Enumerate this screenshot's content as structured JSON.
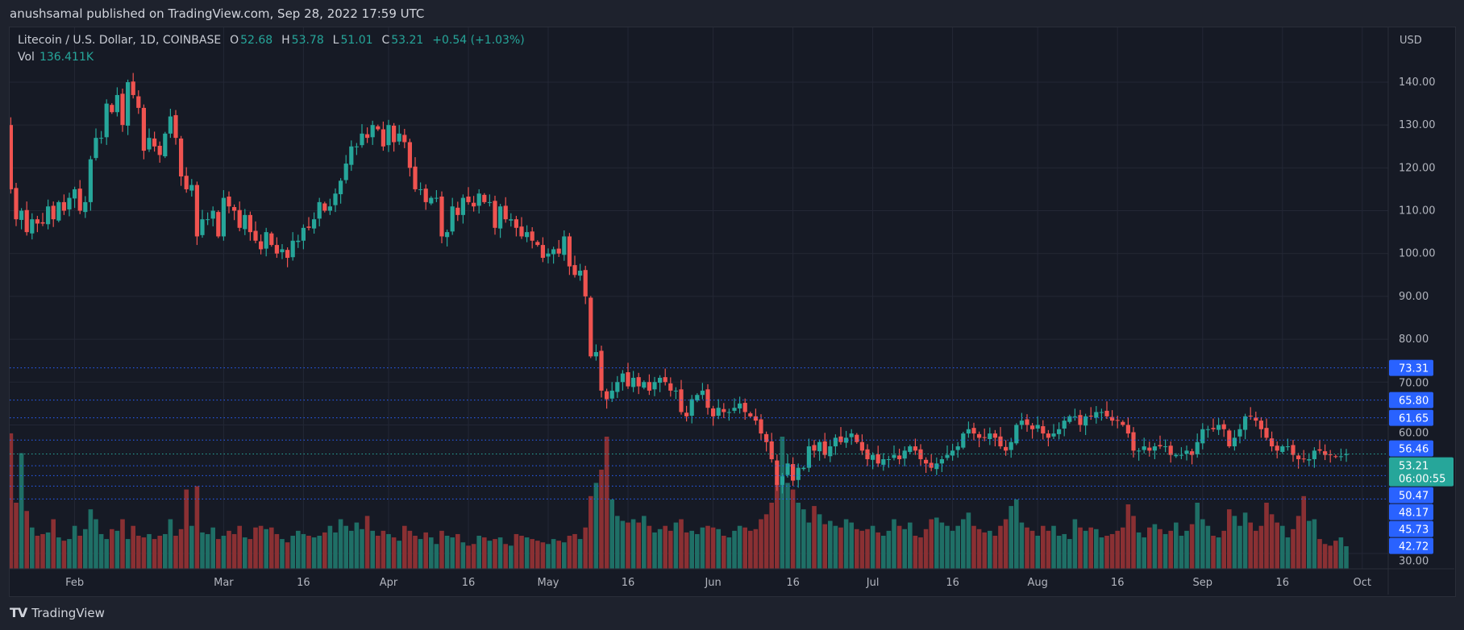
{
  "published": "anushsamal published on TradingView.com, Sep 28, 2022 17:59 UTC",
  "legend": {
    "symbol": "Litecoin / U.S. Dollar, 1D, COINBASE",
    "o_label": "O",
    "o": "52.68",
    "h_label": "H",
    "h": "53.78",
    "l_label": "L",
    "l": "51.01",
    "c_label": "C",
    "c": "53.21",
    "change": "+0.54 (+1.03%)",
    "vol_label": "Vol",
    "vol": "136.411K"
  },
  "currency": "USD",
  "brand": {
    "logo": "TV",
    "name": "TradingView"
  },
  "colors": {
    "up": "#26a69a",
    "down": "#ef5350",
    "up_vol": "#1f6f66",
    "down_vol": "#8a3033",
    "level": "#2962ff",
    "bg": "#161a25",
    "grid": "#232735"
  },
  "chart_data": {
    "type": "candlestick",
    "symbol": "LTCUSD",
    "interval": "1D",
    "start_date": "2022-01-19",
    "end_date": "2022-09-28",
    "ylim": [
      25,
      150
    ],
    "grid": true,
    "y_ticks": [
      140,
      130,
      120,
      110,
      100,
      90,
      80,
      70,
      60,
      30
    ],
    "x_ticks": [
      {
        "label": "Feb",
        "date": "2022-02-01"
      },
      {
        "label": "Mar",
        "date": "2022-03-01"
      },
      {
        "label": "16",
        "date": "2022-03-16"
      },
      {
        "label": "Apr",
        "date": "2022-04-01"
      },
      {
        "label": "16",
        "date": "2022-04-16"
      },
      {
        "label": "May",
        "date": "2022-05-01"
      },
      {
        "label": "16",
        "date": "2022-05-16"
      },
      {
        "label": "Jun",
        "date": "2022-06-01"
      },
      {
        "label": "16",
        "date": "2022-06-16"
      },
      {
        "label": "Jul",
        "date": "2022-07-01"
      },
      {
        "label": "16",
        "date": "2022-07-16"
      },
      {
        "label": "Aug",
        "date": "2022-08-01"
      },
      {
        "label": "16",
        "date": "2022-08-16"
      },
      {
        "label": "Sep",
        "date": "2022-09-01"
      },
      {
        "label": "16",
        "date": "2022-09-16"
      },
      {
        "label": "Oct",
        "date": "2022-10-01"
      }
    ],
    "close": [
      130,
      115,
      108,
      110,
      105,
      108,
      107,
      107,
      111,
      108,
      112,
      110,
      113,
      115,
      110,
      112,
      122,
      127,
      127,
      135,
      133,
      137,
      130,
      140,
      137,
      134,
      124,
      127,
      125,
      123,
      128,
      132,
      127,
      118,
      115,
      116,
      104,
      108,
      108,
      110,
      104,
      113,
      111,
      110,
      106,
      109,
      105,
      103,
      101,
      105,
      102,
      100,
      101,
      99,
      103,
      103,
      106,
      106,
      108,
      112,
      110,
      111,
      114,
      117,
      121,
      125,
      125,
      128,
      127,
      130,
      129,
      125,
      130,
      126,
      128,
      126,
      120,
      115,
      115,
      112,
      113,
      113,
      104,
      105,
      111,
      109,
      113,
      112,
      111,
      114,
      112,
      112,
      106,
      111,
      108,
      108,
      106,
      104,
      105,
      103,
      102,
      99,
      100,
      101,
      100,
      104,
      97,
      95,
      96,
      90,
      76,
      77,
      68,
      66,
      68,
      70,
      72,
      69,
      71,
      69,
      70,
      68,
      70,
      71,
      70,
      68,
      68,
      63,
      62,
      66,
      67,
      68,
      64,
      62,
      64,
      63,
      63,
      64,
      65,
      63,
      62,
      61,
      58,
      56,
      52,
      46,
      48,
      51,
      47,
      50,
      50,
      55,
      54,
      56,
      53,
      55,
      57,
      56,
      57,
      58,
      56,
      54,
      52,
      53,
      51,
      52,
      52,
      53,
      52,
      54,
      55,
      54,
      52,
      51,
      50,
      51,
      52,
      53,
      54,
      55,
      58,
      59,
      58,
      57,
      57,
      58,
      57,
      55,
      54,
      56,
      60,
      61,
      60,
      59,
      60,
      58,
      57,
      58,
      59,
      61,
      62,
      62,
      60,
      62,
      62,
      63,
      63,
      62,
      61,
      61,
      60,
      58,
      54,
      54,
      55,
      54,
      55,
      55,
      55,
      53,
      53,
      53,
      54,
      53,
      56,
      59,
      59,
      59,
      60,
      59,
      55,
      57,
      59,
      62,
      62,
      61,
      59,
      57,
      55,
      54,
      55,
      55,
      53,
      52,
      52,
      52,
      54,
      54,
      53,
      53,
      52.6,
      52.68,
      53.21
    ],
    "volume_k": [
      260,
      820,
      400,
      700,
      350,
      250,
      200,
      210,
      220,
      300,
      190,
      170,
      180,
      260,
      200,
      240,
      360,
      300,
      210,
      180,
      240,
      230,
      300,
      180,
      260,
      200,
      190,
      210,
      180,
      200,
      210,
      300,
      200,
      240,
      480,
      260,
      500,
      220,
      210,
      250,
      180,
      200,
      230,
      210,
      260,
      190,
      180,
      250,
      260,
      240,
      250,
      210,
      180,
      160,
      200,
      230,
      210,
      200,
      190,
      200,
      220,
      260,
      220,
      300,
      260,
      230,
      280,
      240,
      320,
      230,
      200,
      230,
      210,
      190,
      170,
      260,
      230,
      200,
      180,
      220,
      190,
      150,
      230,
      200,
      190,
      210,
      160,
      140,
      150,
      200,
      190,
      170,
      180,
      190,
      150,
      140,
      210,
      200,
      190,
      180,
      170,
      160,
      150,
      180,
      170,
      160,
      200,
      210,
      180,
      250,
      440,
      520,
      600,
      800,
      420,
      320,
      290,
      280,
      300,
      280,
      320,
      260,
      220,
      240,
      260,
      230,
      280,
      300,
      220,
      230,
      210,
      250,
      260,
      250,
      240,
      200,
      190,
      230,
      260,
      250,
      230,
      240,
      300,
      330,
      400,
      520,
      800,
      520,
      480,
      400,
      360,
      280,
      380,
      330,
      270,
      290,
      260,
      250,
      300,
      280,
      240,
      230,
      240,
      260,
      220,
      200,
      230,
      300,
      260,
      240,
      280,
      200,
      190,
      240,
      300,
      310,
      280,
      260,
      230,
      260,
      300,
      340,
      260,
      240,
      220,
      230,
      200,
      260,
      300,
      380,
      420,
      280,
      250,
      230,
      200,
      260,
      230,
      260,
      200,
      210,
      180,
      300,
      250,
      230,
      250,
      240,
      190,
      200,
      210,
      230,
      250,
      390,
      320,
      220,
      190,
      250,
      270,
      240,
      210,
      230,
      280,
      200,
      230,
      270,
      400,
      300,
      260,
      200,
      190,
      230,
      360,
      320,
      260,
      340,
      280,
      230,
      260,
      400,
      330,
      280,
      260,
      190,
      240,
      320,
      440,
      290,
      300,
      180,
      150,
      140,
      170,
      190,
      136.411
    ],
    "last_price": {
      "value": "53.21",
      "countdown": "06:00:55"
    },
    "levels": [
      "73.31",
      "65.80",
      "61.65",
      "56.46",
      "50.47",
      "48.17",
      "45.73",
      "42.72"
    ]
  }
}
